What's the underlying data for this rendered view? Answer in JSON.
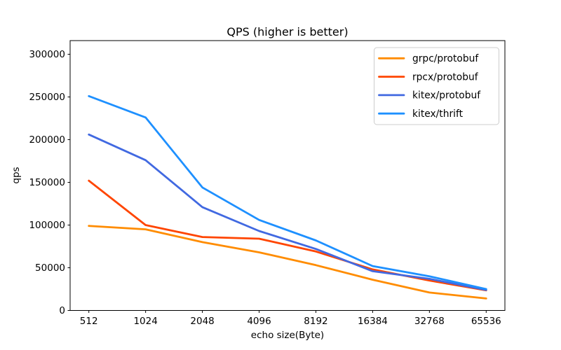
{
  "figure": {
    "background": "#ffffff",
    "text_color": "#000000",
    "spine_color": "#000000"
  },
  "chart_data": {
    "type": "line",
    "title": "QPS (higher is better)",
    "xlabel": "echo size(Byte)",
    "ylabel": "qps",
    "categories": [
      "512",
      "1024",
      "2048",
      "4096",
      "8192",
      "16384",
      "32768",
      "65536"
    ],
    "x_scale": "categorical-log2",
    "yticks": [
      0,
      50000,
      100000,
      150000,
      200000,
      250000,
      300000
    ],
    "ylim": [
      0,
      316000
    ],
    "grid": false,
    "legend": {
      "position": "upper right",
      "border_color": "#cccccc",
      "background": "#ffffff",
      "entries": [
        "grpc/protobuf",
        "rpcx/protobuf",
        "kitex/protobuf",
        "kitex/thrift"
      ]
    },
    "series": [
      {
        "name": "grpc/protobuf",
        "color": "#ff8c00",
        "values": [
          99000,
          95000,
          80000,
          68000,
          53000,
          36000,
          21000,
          14000
        ]
      },
      {
        "name": "rpcx/protobuf",
        "color": "#ff4500",
        "values": [
          152000,
          100000,
          86000,
          84000,
          69000,
          48000,
          35000,
          23500
        ]
      },
      {
        "name": "kitex/protobuf",
        "color": "#4169e1",
        "values": [
          206000,
          176000,
          121000,
          93000,
          72000,
          46000,
          37000,
          24000
        ]
      },
      {
        "name": "kitex/thrift",
        "color": "#1e90ff",
        "values": [
          251000,
          226000,
          144000,
          106000,
          82000,
          52000,
          40000,
          25000
        ]
      }
    ]
  }
}
